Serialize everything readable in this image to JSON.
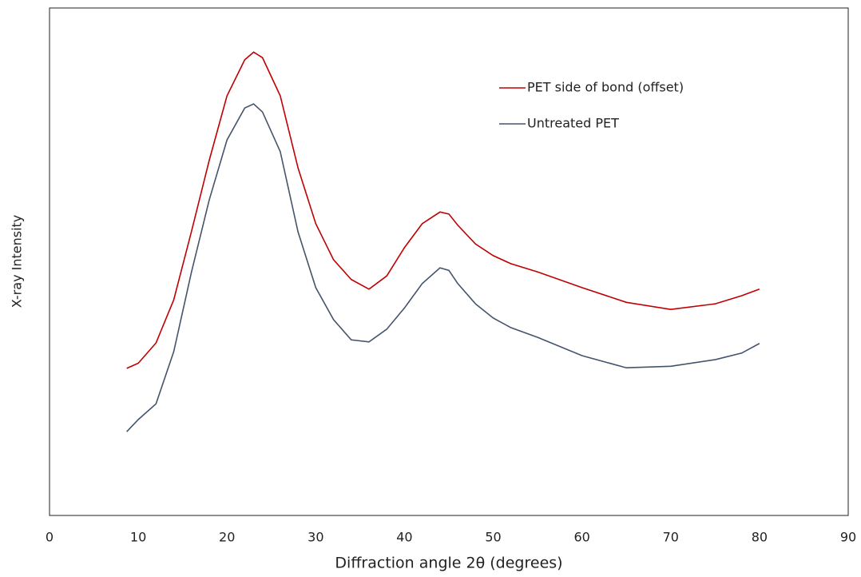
{
  "chart_data": {
    "type": "line",
    "x_label": "Diffraction angle 2θ (degrees)",
    "y_label": "X-ray Intensity",
    "x": [
      8.7,
      10,
      12,
      14,
      16,
      18,
      20,
      22,
      23,
      24,
      26,
      28,
      30,
      32,
      34,
      36,
      38,
      40,
      42,
      44,
      45,
      46,
      48,
      50,
      52,
      55,
      60,
      65,
      70,
      75,
      78,
      80
    ],
    "series": [
      {
        "name": "PET side of bond (offset)",
        "color": "#c00000",
        "values": [
          29,
          30,
          34,
          42.5,
          56,
          70,
          82.7,
          89.8,
          91.3,
          90.2,
          82.7,
          68.5,
          57.5,
          50.4,
          46.5,
          44.6,
          47.2,
          52.8,
          57.5,
          59.8,
          59.4,
          57.2,
          53.5,
          51.2,
          49.6,
          48,
          44.9,
          42,
          40.6,
          41.7,
          43.3,
          44.6
        ]
      },
      {
        "name": "Untreated PET",
        "color": "#44546a",
        "values": [
          16.5,
          18.9,
          22,
          32.3,
          48,
          62.2,
          74,
          80.3,
          81.1,
          79.5,
          71.7,
          55.9,
          44.9,
          38.6,
          34.6,
          34.2,
          36.7,
          40.9,
          45.7,
          48.8,
          48.3,
          45.7,
          41.7,
          38.9,
          37,
          35.1,
          31.5,
          29.1,
          29.4,
          30.7,
          32,
          33.9
        ]
      }
    ],
    "xlim": [
      0,
      90
    ],
    "xticks": [
      0,
      10,
      20,
      30,
      40,
      50,
      60,
      70,
      80,
      90
    ],
    "ylim": [
      0,
      100
    ],
    "grid": false,
    "legend": "upper right"
  }
}
